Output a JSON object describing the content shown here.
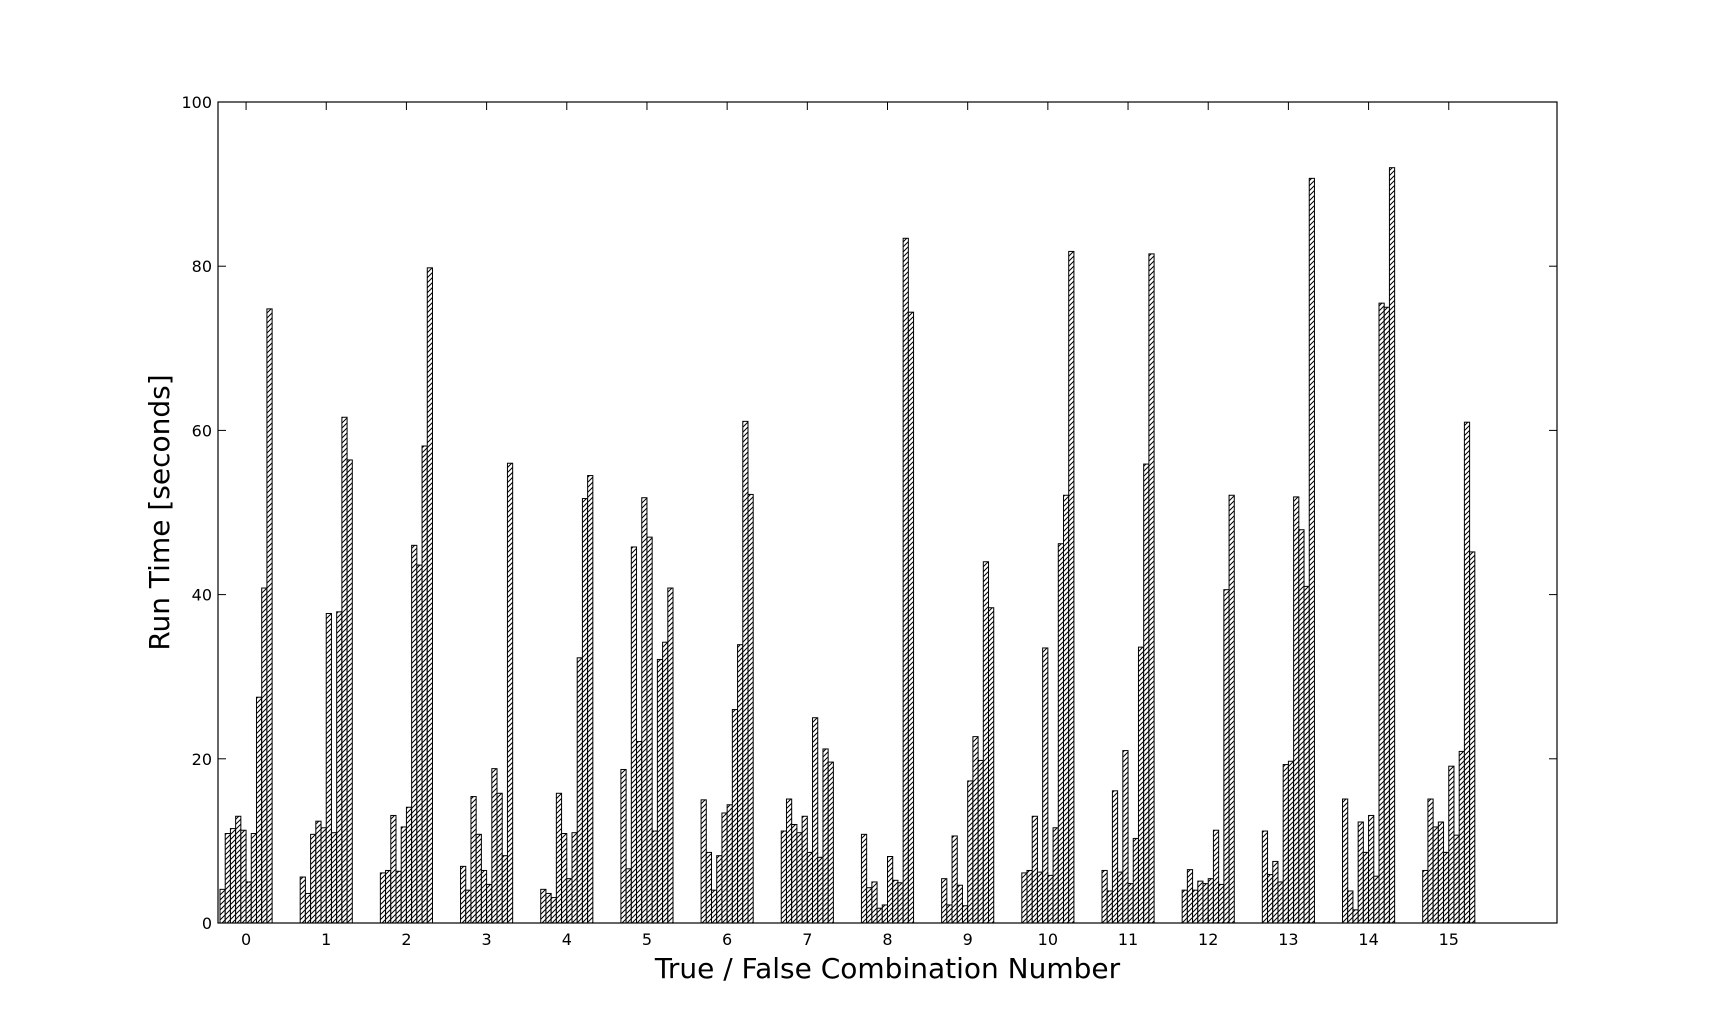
{
  "chart_data": {
    "type": "bar",
    "xlabel": "True / False Combination Number",
    "ylabel": "Run Time [seconds]",
    "ylim": [
      0,
      100
    ],
    "xlim": [
      -0.35,
      16.35
    ],
    "yticks": [
      0,
      20,
      40,
      60,
      80,
      100
    ],
    "categories": [
      "0",
      "1",
      "2",
      "3",
      "4",
      "5",
      "6",
      "7",
      "8",
      "9",
      "10",
      "11",
      "12",
      "13",
      "14",
      "15"
    ],
    "bar_fill": "#ffffff",
    "bar_hatch": "diagonal",
    "bar_edge_color": "#000000",
    "grid": false,
    "legend": "none",
    "groups": [
      [
        4.1,
        10.9,
        11.5,
        13.0,
        11.3,
        5.0,
        10.9,
        27.5,
        40.8,
        74.8
      ],
      [
        5.6,
        3.6,
        10.8,
        12.4,
        11.6,
        37.7,
        11.0,
        37.9,
        61.6,
        56.4
      ],
      [
        6.1,
        6.4,
        13.1,
        6.3,
        11.7,
        14.1,
        46.0,
        43.6,
        58.1,
        79.8
      ],
      [
        6.9,
        4.0,
        15.4,
        10.8,
        6.4,
        4.7,
        18.8,
        15.8,
        8.2,
        56.0
      ],
      [
        4.1,
        3.6,
        3.1,
        15.8,
        10.9,
        5.4,
        11.0,
        32.3,
        51.7,
        54.5
      ],
      [
        18.7,
        6.6,
        45.8,
        22.1,
        51.8,
        47.0,
        11.2,
        32.1,
        34.2,
        40.8
      ],
      [
        15.0,
        8.6,
        4.0,
        8.2,
        13.4,
        14.4,
        26.0,
        33.9,
        61.1,
        52.2
      ],
      [
        11.2,
        15.1,
        12.0,
        11.0,
        13.0,
        8.6,
        25.0,
        8.0,
        21.2,
        19.6
      ],
      [
        10.8,
        4.3,
        5.0,
        1.8,
        2.2,
        8.1,
        5.2,
        4.9,
        83.4,
        74.4
      ],
      [
        5.4,
        2.2,
        10.6,
        4.6,
        2.1,
        17.3,
        22.7,
        19.8,
        44.0,
        38.4
      ],
      [
        6.1,
        6.4,
        13.0,
        6.2,
        33.5,
        5.8,
        11.6,
        46.2,
        52.1,
        81.8
      ],
      [
        6.4,
        3.9,
        16.1,
        6.2,
        21.0,
        4.8,
        10.3,
        33.6,
        55.9,
        81.5
      ],
      [
        4.0,
        6.5,
        4.0,
        5.1,
        4.8,
        5.4,
        11.3,
        4.7,
        40.6,
        52.1
      ],
      [
        11.2,
        5.9,
        7.5,
        5.0,
        19.3,
        19.7,
        51.9,
        47.9,
        41.0,
        90.7
      ],
      [
        15.1,
        3.9,
        1.6,
        12.3,
        8.6,
        13.1,
        5.7,
        75.5,
        75.0,
        92.0
      ],
      [
        6.4,
        15.1,
        11.7,
        12.3,
        8.6,
        19.1,
        10.7,
        20.9,
        61.0,
        45.2
      ]
    ]
  }
}
